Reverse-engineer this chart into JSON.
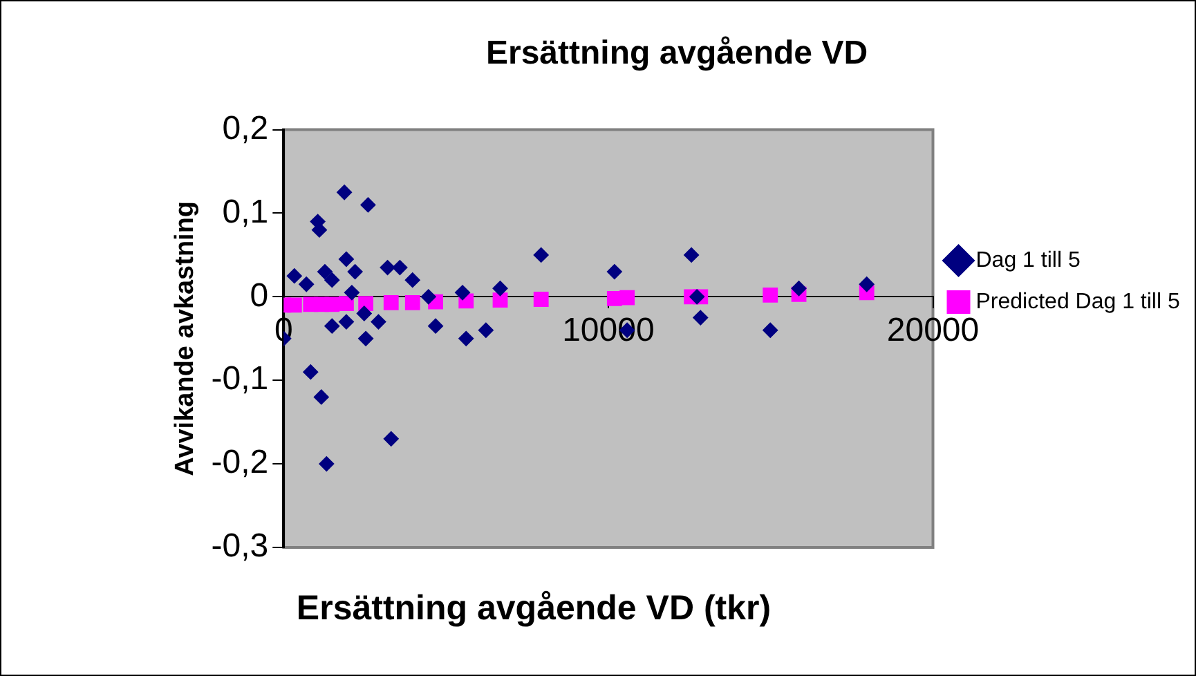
{
  "chart_data": {
    "type": "scatter",
    "title": "Ersättning avgående VD",
    "xlabel": "Ersättning avgående VD (tkr)",
    "ylabel": "Avvikande avkastning",
    "xlim": [
      0,
      20000
    ],
    "xticks": [
      0,
      10000,
      20000
    ],
    "ylim": [
      -0.3,
      0.2
    ],
    "yticks": [
      {
        "value": -0.3,
        "label": "-0,3"
      },
      {
        "value": -0.2,
        "label": "-0,2"
      },
      {
        "value": -0.1,
        "label": "-0,1"
      },
      {
        "value": 0,
        "label": "0"
      },
      {
        "value": 0.1,
        "label": "0,1"
      },
      {
        "value": 0.2,
        "label": "0,2"
      }
    ],
    "grid": false,
    "legend": "right",
    "series": [
      {
        "name": "Dag 1 till 5",
        "color": "#000080",
        "marker": "diamond",
        "x": [
          0,
          330,
          700,
          830,
          1050,
          1100,
          1160,
          1270,
          1320,
          1490,
          1490,
          1870,
          1930,
          1930,
          2100,
          2200,
          2480,
          2530,
          2600,
          2920,
          3200,
          3310,
          3580,
          3970,
          4460,
          4680,
          5510,
          5620,
          6230,
          6670,
          7930,
          10190,
          10580,
          12560,
          12730,
          12840,
          14990,
          15870,
          17960
        ],
        "values": [
          -0.05,
          0.025,
          0.015,
          -0.09,
          0.09,
          0.08,
          -0.12,
          0.03,
          -0.2,
          0.02,
          -0.035,
          0.125,
          0.045,
          -0.03,
          0.005,
          0.03,
          -0.02,
          -0.05,
          0.11,
          -0.03,
          0.035,
          -0.17,
          0.035,
          0.02,
          0,
          -0.035,
          0.005,
          -0.05,
          -0.04,
          0.01,
          0.05,
          0.03,
          -0.04,
          0.05,
          0,
          -0.025,
          -0.04,
          0.01,
          0.015
        ]
      },
      {
        "name": "Predicted Dag 1 till 5",
        "color": "#ff00ff",
        "marker": "square",
        "x": [
          0,
          330,
          830,
          1160,
          1490,
          1930,
          2530,
          3310,
          3970,
          4680,
          5620,
          6670,
          7930,
          10190,
          10580,
          12560,
          12840,
          14990,
          15870,
          17960
        ],
        "values": [
          -0.01,
          -0.01,
          -0.009,
          -0.009,
          -0.009,
          -0.008,
          -0.008,
          -0.007,
          -0.007,
          -0.006,
          -0.005,
          -0.004,
          -0.003,
          -0.002,
          -0.001,
          0,
          0,
          0.002,
          0.003,
          0.005
        ]
      }
    ]
  }
}
